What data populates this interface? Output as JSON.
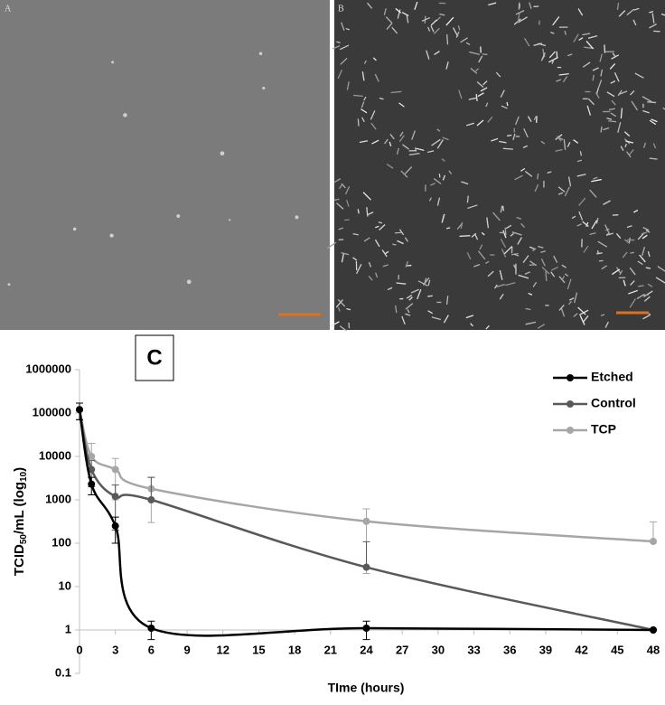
{
  "panels": {
    "a_label": "A",
    "b_label": "B",
    "c_label": "C"
  },
  "chart_data": {
    "type": "line",
    "y_label": [
      "TCID",
      "50",
      "/mL (log",
      "10",
      ")"
    ],
    "x_label": "TIme (hours)",
    "x": [
      0,
      1,
      3,
      6,
      24,
      48
    ],
    "xlim": [
      0,
      48
    ],
    "xticks": [
      0,
      3,
      6,
      9,
      12,
      15,
      18,
      21,
      24,
      27,
      30,
      33,
      36,
      39,
      42,
      45,
      48
    ],
    "ylim": [
      0.1,
      1000000
    ],
    "yticks": [
      0.1,
      1,
      10,
      100,
      1000,
      10000,
      100000,
      1000000
    ],
    "log_y": true,
    "x_axis_at": 1,
    "legend": "top-right",
    "series": [
      {
        "name": "Etched",
        "color": "#000000",
        "values": [
          120000,
          2300,
          250,
          1.1,
          1.1,
          1
        ],
        "errors": [
          50000,
          1000,
          150,
          0.5,
          0.5,
          0
        ]
      },
      {
        "name": "Control",
        "color": "#595959",
        "values": [
          120000,
          5000,
          1200,
          1000,
          28,
          1
        ],
        "errors": [
          50000,
          3000,
          1000,
          2300,
          80,
          0
        ]
      },
      {
        "name": "TCP",
        "color": "#a6a6a6",
        "values": [
          120000,
          10000,
          5000,
          1800,
          320,
          110
        ],
        "errors": [
          50000,
          10000,
          4000,
          1500,
          300,
          200
        ]
      }
    ]
  }
}
